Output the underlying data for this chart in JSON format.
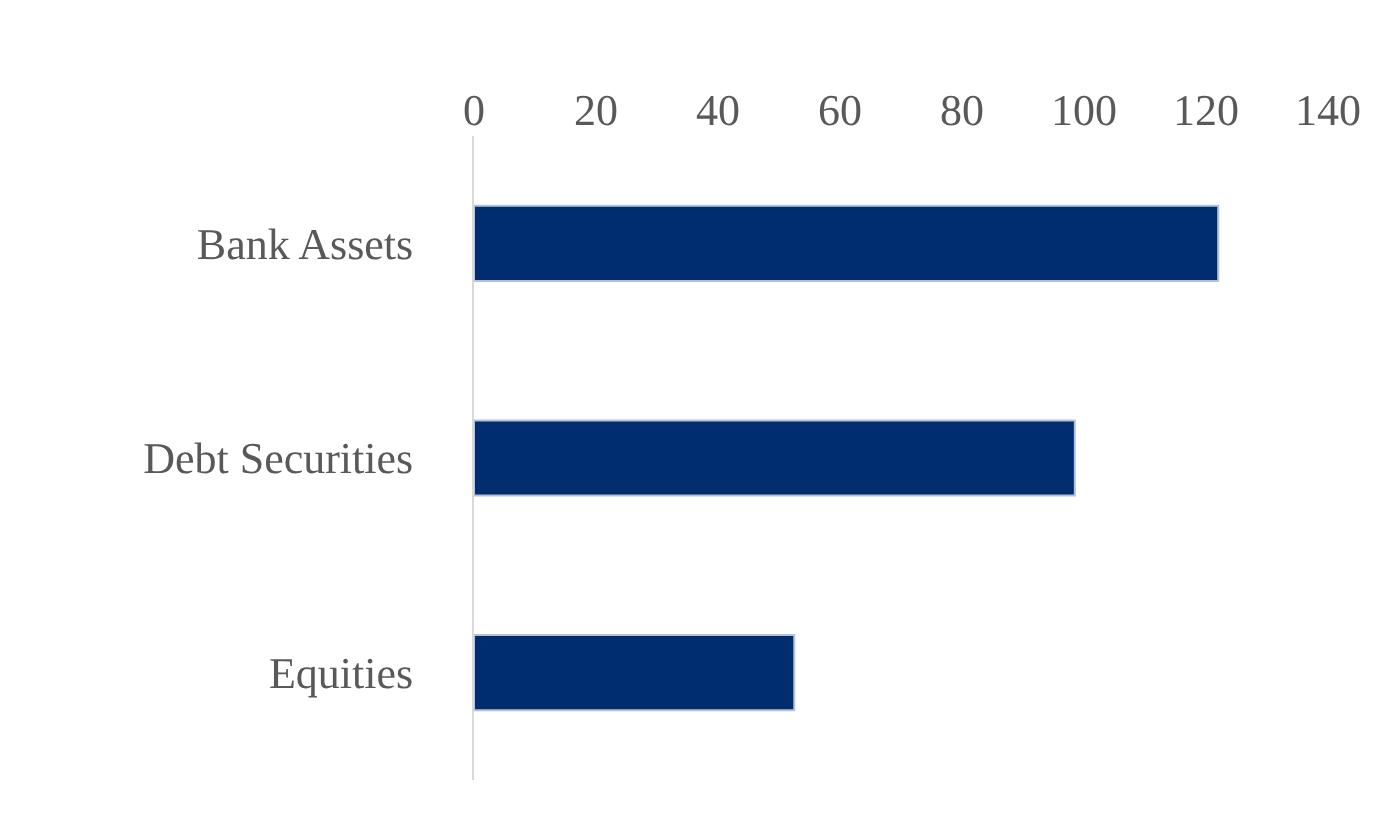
{
  "chart_data": {
    "type": "bar",
    "orientation": "horizontal",
    "categories": [
      "Bank Assets",
      "Debt Securities",
      "Equities"
    ],
    "values": [
      122,
      98.5,
      52.5
    ],
    "color": "#002d6e",
    "xlim": [
      0,
      140
    ],
    "xticks": [
      0,
      20,
      40,
      60,
      80,
      100,
      120,
      140
    ],
    "grid": false
  }
}
